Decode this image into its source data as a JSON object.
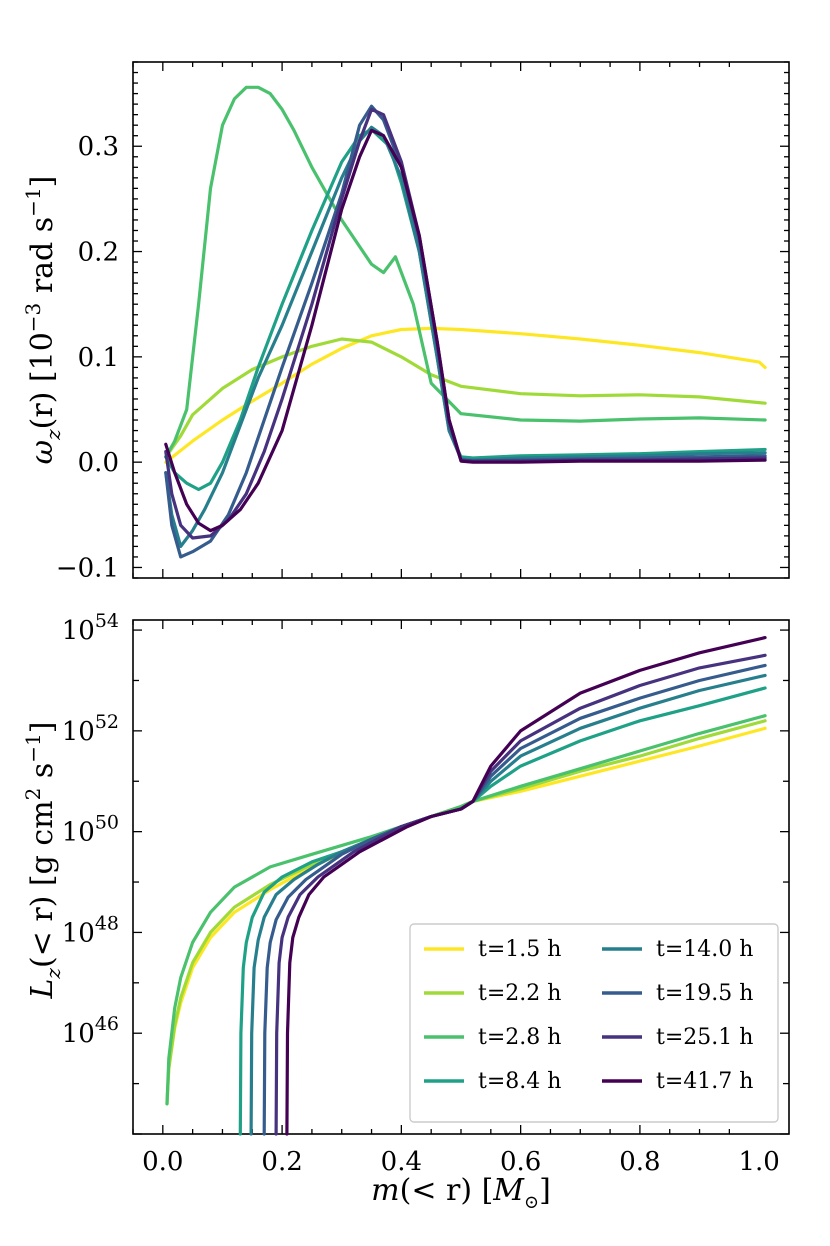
{
  "colors": {
    "t1": "#fde725",
    "t2": "#a0da39",
    "t3": "#4ac16d",
    "t4": "#1fa187",
    "t5": "#277f8e",
    "t6": "#365c8d",
    "t7": "#46327e",
    "t8": "#440154"
  },
  "chart_data": [
    {
      "type": "line",
      "panel": "top",
      "ylabel": "ω_z(r) [10^-3 rad s^-1]",
      "ylabel_parts": {
        "omega": "ω",
        "sub": "z",
        "arg": "(r) [10",
        "exp1": "−3",
        "mid": " rad s",
        "exp2": "−1",
        "end": "]"
      },
      "xlim": [
        -0.05,
        1.05
      ],
      "ylim": [
        -0.11,
        0.38
      ],
      "yticks": [
        -0.1,
        0.0,
        0.1,
        0.2,
        0.3
      ],
      "ytick_labels": [
        "−0.1",
        "0.0",
        "0.1",
        "0.2",
        "0.3"
      ],
      "series": [
        {
          "name": "t=1.5 h",
          "color_key": "t1",
          "x": [
            0.005,
            0.05,
            0.1,
            0.15,
            0.2,
            0.25,
            0.3,
            0.35,
            0.4,
            0.45,
            0.5,
            0.6,
            0.7,
            0.8,
            0.9,
            1.0,
            1.01
          ],
          "y": [
            0.0,
            0.02,
            0.04,
            0.058,
            0.075,
            0.093,
            0.108,
            0.12,
            0.126,
            0.127,
            0.126,
            0.122,
            0.117,
            0.111,
            0.104,
            0.095,
            0.09
          ]
        },
        {
          "name": "t=2.2 h",
          "color_key": "t2",
          "x": [
            0.005,
            0.03,
            0.05,
            0.1,
            0.15,
            0.2,
            0.25,
            0.3,
            0.35,
            0.4,
            0.45,
            0.5,
            0.6,
            0.7,
            0.8,
            0.9,
            1.01
          ],
          "y": [
            0.005,
            0.025,
            0.045,
            0.07,
            0.088,
            0.1,
            0.11,
            0.117,
            0.114,
            0.1,
            0.083,
            0.072,
            0.065,
            0.063,
            0.064,
            0.062,
            0.056
          ]
        },
        {
          "name": "t=2.8 h",
          "color_key": "t3",
          "x": [
            0.005,
            0.02,
            0.04,
            0.06,
            0.08,
            0.1,
            0.12,
            0.14,
            0.16,
            0.18,
            0.2,
            0.22,
            0.25,
            0.3,
            0.35,
            0.37,
            0.39,
            0.42,
            0.45,
            0.5,
            0.6,
            0.7,
            0.8,
            0.9,
            1.01
          ],
          "y": [
            0.005,
            0.02,
            0.05,
            0.15,
            0.26,
            0.32,
            0.345,
            0.356,
            0.356,
            0.35,
            0.335,
            0.315,
            0.28,
            0.23,
            0.188,
            0.18,
            0.195,
            0.15,
            0.075,
            0.046,
            0.04,
            0.039,
            0.041,
            0.042,
            0.04
          ]
        },
        {
          "name": "t=8.4 h",
          "color_key": "t4",
          "x": [
            0.005,
            0.02,
            0.04,
            0.06,
            0.08,
            0.1,
            0.13,
            0.16,
            0.2,
            0.25,
            0.3,
            0.33,
            0.35,
            0.38,
            0.4,
            0.43,
            0.46,
            0.48,
            0.5,
            0.52,
            0.6,
            0.7,
            0.8,
            0.9,
            1.01
          ],
          "y": [
            0.005,
            -0.01,
            -0.02,
            -0.026,
            -0.02,
            0.0,
            0.04,
            0.09,
            0.15,
            0.22,
            0.285,
            0.31,
            0.316,
            0.3,
            0.265,
            0.2,
            0.1,
            0.03,
            0.005,
            0.004,
            0.006,
            0.007,
            0.008,
            0.01,
            0.012
          ]
        },
        {
          "name": "t=14.0 h",
          "color_key": "t5",
          "x": [
            0.005,
            0.015,
            0.03,
            0.05,
            0.07,
            0.1,
            0.13,
            0.16,
            0.2,
            0.25,
            0.3,
            0.33,
            0.35,
            0.37,
            0.4,
            0.43,
            0.46,
            0.48,
            0.5,
            0.52,
            0.6,
            0.7,
            0.8,
            0.9,
            1.01
          ],
          "y": [
            -0.01,
            -0.05,
            -0.08,
            -0.065,
            -0.045,
            -0.01,
            0.035,
            0.08,
            0.13,
            0.2,
            0.27,
            0.305,
            0.318,
            0.31,
            0.27,
            0.2,
            0.1,
            0.03,
            0.003,
            0.002,
            0.004,
            0.005,
            0.006,
            0.008,
            0.009
          ]
        },
        {
          "name": "t=19.5 h",
          "color_key": "t6",
          "x": [
            0.005,
            0.015,
            0.03,
            0.05,
            0.08,
            0.11,
            0.14,
            0.17,
            0.2,
            0.25,
            0.3,
            0.33,
            0.35,
            0.37,
            0.4,
            0.43,
            0.46,
            0.48,
            0.5,
            0.52,
            0.6,
            0.7,
            0.8,
            0.9,
            1.01
          ],
          "y": [
            -0.01,
            -0.06,
            -0.09,
            -0.085,
            -0.075,
            -0.05,
            -0.01,
            0.04,
            0.09,
            0.17,
            0.255,
            0.32,
            0.338,
            0.325,
            0.28,
            0.21,
            0.11,
            0.035,
            0.002,
            0.001,
            0.002,
            0.003,
            0.004,
            0.005,
            0.006
          ]
        },
        {
          "name": "t=25.1 h",
          "color_key": "t7",
          "x": [
            0.005,
            0.015,
            0.03,
            0.05,
            0.08,
            0.11,
            0.14,
            0.17,
            0.2,
            0.25,
            0.3,
            0.33,
            0.35,
            0.37,
            0.4,
            0.43,
            0.46,
            0.48,
            0.5,
            0.52,
            0.6,
            0.7,
            0.8,
            0.9,
            1.01
          ],
          "y": [
            0.01,
            -0.03,
            -0.06,
            -0.072,
            -0.07,
            -0.055,
            -0.03,
            0.01,
            0.06,
            0.15,
            0.25,
            0.305,
            0.335,
            0.33,
            0.285,
            0.215,
            0.115,
            0.04,
            0.002,
            0.001,
            0.001,
            0.002,
            0.002,
            0.003,
            0.004
          ]
        },
        {
          "name": "t=41.7 h",
          "color_key": "t8",
          "x": [
            0.005,
            0.02,
            0.04,
            0.06,
            0.08,
            0.1,
            0.13,
            0.16,
            0.2,
            0.25,
            0.3,
            0.33,
            0.35,
            0.37,
            0.4,
            0.43,
            0.46,
            0.48,
            0.5,
            0.52,
            0.6,
            0.7,
            0.8,
            0.9,
            1.01
          ],
          "y": [
            0.017,
            -0.01,
            -0.04,
            -0.058,
            -0.065,
            -0.06,
            -0.045,
            -0.02,
            0.03,
            0.13,
            0.24,
            0.29,
            0.315,
            0.31,
            0.28,
            0.215,
            0.115,
            0.04,
            0.001,
            0.0,
            0.0,
            0.001,
            0.001,
            0.001,
            0.002
          ]
        }
      ]
    },
    {
      "type": "line",
      "panel": "bottom",
      "yscale": "log",
      "xlabel": "m(< r) [M⊙]",
      "xlabel_parts": {
        "m": "m",
        "arg": "(< r) [",
        "M": "M",
        "sub": "⊙",
        "end": "]"
      },
      "ylabel": "L_z(< r) [g cm^2 s^-1]",
      "ylabel_parts": {
        "L": "L",
        "sub": "z",
        "arg": "(< r) [g cm",
        "exp1": "2",
        "mid": " s",
        "exp2": "−1",
        "end": "]"
      },
      "xlim": [
        -0.05,
        1.05
      ],
      "ylim_log10": [
        44.0,
        54.2
      ],
      "xticks": [
        0.0,
        0.2,
        0.4,
        0.6,
        0.8,
        1.0
      ],
      "xtick_labels": [
        "0.0",
        "0.2",
        "0.4",
        "0.6",
        "0.8",
        "1.0"
      ],
      "yticks_log10": [
        46,
        48,
        50,
        52,
        54
      ],
      "ytick_labels": [
        {
          "base": "10",
          "exp": "46"
        },
        {
          "base": "10",
          "exp": "48"
        },
        {
          "base": "10",
          "exp": "50"
        },
        {
          "base": "10",
          "exp": "52"
        },
        {
          "base": "10",
          "exp": "54"
        }
      ],
      "series": [
        {
          "name": "t=1.5 h",
          "color_key": "t1",
          "x": [
            0.007,
            0.01,
            0.02,
            0.03,
            0.05,
            0.08,
            0.12,
            0.18,
            0.25,
            0.35,
            0.45,
            0.5,
            0.52,
            0.6,
            0.7,
            0.8,
            0.9,
            1.01
          ],
          "y": [
            44.6,
            45.3,
            46.1,
            46.6,
            47.3,
            47.9,
            48.4,
            48.85,
            49.3,
            49.85,
            50.3,
            50.5,
            50.6,
            50.8,
            51.1,
            51.4,
            51.7,
            52.05
          ]
        },
        {
          "name": "t=2.2 h",
          "color_key": "t2",
          "x": [
            0.007,
            0.01,
            0.02,
            0.03,
            0.05,
            0.08,
            0.12,
            0.18,
            0.25,
            0.35,
            0.45,
            0.5,
            0.52,
            0.6,
            0.7,
            0.8,
            0.9,
            1.01
          ],
          "y": [
            44.6,
            45.3,
            46.15,
            46.7,
            47.4,
            48.0,
            48.5,
            48.95,
            49.35,
            49.85,
            50.3,
            50.5,
            50.6,
            50.85,
            51.2,
            51.5,
            51.85,
            52.2
          ]
        },
        {
          "name": "t=2.8 h",
          "color_key": "t3",
          "x": [
            0.007,
            0.01,
            0.02,
            0.03,
            0.05,
            0.08,
            0.12,
            0.18,
            0.25,
            0.35,
            0.45,
            0.5,
            0.52,
            0.6,
            0.7,
            0.8,
            0.9,
            1.01
          ],
          "y": [
            44.6,
            45.5,
            46.5,
            47.1,
            47.8,
            48.4,
            48.9,
            49.3,
            49.55,
            49.9,
            50.3,
            50.5,
            50.6,
            50.9,
            51.25,
            51.6,
            51.95,
            52.3
          ]
        },
        {
          "name": "t=8.4 h",
          "color_key": "t4",
          "x": [
            0.13,
            0.131,
            0.135,
            0.14,
            0.15,
            0.17,
            0.2,
            0.25,
            0.3,
            0.35,
            0.4,
            0.45,
            0.5,
            0.52,
            0.55,
            0.6,
            0.7,
            0.8,
            0.9,
            1.01
          ],
          "y": [
            44.0,
            46.0,
            47.3,
            47.8,
            48.3,
            48.8,
            49.1,
            49.4,
            49.6,
            49.85,
            50.1,
            50.3,
            50.45,
            50.6,
            50.9,
            51.3,
            51.8,
            52.2,
            52.5,
            52.85
          ]
        },
        {
          "name": "t=14.0 h",
          "color_key": "t5",
          "x": [
            0.148,
            0.149,
            0.153,
            0.16,
            0.17,
            0.19,
            0.22,
            0.26,
            0.3,
            0.35,
            0.4,
            0.45,
            0.5,
            0.52,
            0.55,
            0.6,
            0.7,
            0.8,
            0.9,
            1.01
          ],
          "y": [
            44.0,
            46.0,
            47.3,
            47.85,
            48.3,
            48.75,
            49.05,
            49.35,
            49.6,
            49.85,
            50.1,
            50.3,
            50.45,
            50.6,
            51.0,
            51.5,
            52.05,
            52.45,
            52.8,
            53.1
          ]
        },
        {
          "name": "t=19.5 h",
          "color_key": "t6",
          "x": [
            0.17,
            0.171,
            0.175,
            0.18,
            0.19,
            0.21,
            0.24,
            0.27,
            0.3,
            0.35,
            0.4,
            0.45,
            0.5,
            0.52,
            0.55,
            0.6,
            0.7,
            0.8,
            0.9,
            1.01
          ],
          "y": [
            44.0,
            46.0,
            47.3,
            47.8,
            48.25,
            48.7,
            49.05,
            49.3,
            49.55,
            49.85,
            50.1,
            50.3,
            50.45,
            50.6,
            51.1,
            51.65,
            52.25,
            52.65,
            53.0,
            53.3
          ]
        },
        {
          "name": "t=25.1 h",
          "color_key": "t7",
          "x": [
            0.19,
            0.191,
            0.195,
            0.2,
            0.21,
            0.23,
            0.26,
            0.29,
            0.32,
            0.36,
            0.4,
            0.45,
            0.5,
            0.52,
            0.55,
            0.6,
            0.7,
            0.8,
            0.9,
            1.01
          ],
          "y": [
            44.0,
            46.0,
            47.4,
            47.9,
            48.3,
            48.75,
            49.1,
            49.35,
            49.6,
            49.85,
            50.1,
            50.3,
            50.45,
            50.6,
            51.2,
            51.8,
            52.45,
            52.9,
            53.25,
            53.5
          ]
        },
        {
          "name": "t=41.7 h",
          "color_key": "t8",
          "x": [
            0.208,
            0.209,
            0.213,
            0.218,
            0.228,
            0.245,
            0.27,
            0.3,
            0.33,
            0.37,
            0.41,
            0.45,
            0.5,
            0.52,
            0.55,
            0.6,
            0.7,
            0.8,
            0.9,
            1.01
          ],
          "y": [
            44.0,
            46.0,
            47.4,
            47.9,
            48.3,
            48.75,
            49.1,
            49.35,
            49.6,
            49.85,
            50.1,
            50.3,
            50.45,
            50.6,
            51.3,
            52.0,
            52.75,
            53.2,
            53.55,
            53.85
          ]
        }
      ],
      "legend": {
        "placement": "lower-right",
        "entries": [
          "t=1.5 h",
          "t=14.0 h",
          "t=2.2 h",
          "t=19.5 h",
          "t=2.8 h",
          "t=25.1 h",
          "t=8.4 h",
          "t=41.7 h"
        ],
        "entry_color_keys": [
          "t1",
          "t5",
          "t2",
          "t6",
          "t3",
          "t7",
          "t4",
          "t8"
        ]
      }
    }
  ]
}
